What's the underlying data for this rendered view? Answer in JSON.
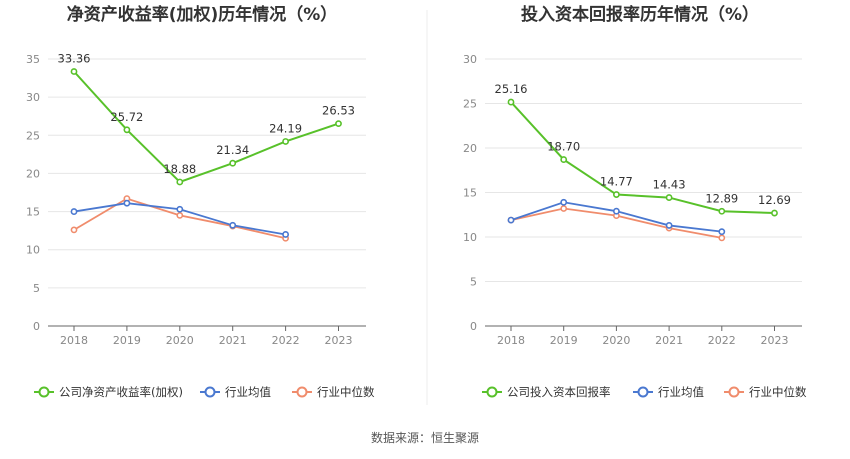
{
  "source_text": "数据来源：恒生聚源",
  "colors": {
    "company": "#58c12a",
    "avg": "#4a78d0",
    "median": "#f08c6c",
    "grid": "#e6e6e6",
    "axis": "#666666"
  },
  "chart_data": [
    {
      "type": "line",
      "title": "净资产收益率(加权)历年情况（%）",
      "categories": [
        "2018",
        "2019",
        "2020",
        "2021",
        "2022",
        "2023"
      ],
      "ylim": [
        0,
        35
      ],
      "yticks": [
        "0",
        "5",
        "10",
        "15",
        "20",
        "25",
        "30",
        "35"
      ],
      "grid": true,
      "legend": "bottom-left",
      "series": [
        {
          "name": "公司净资产收益率(加权)",
          "values": [
            33.36,
            25.72,
            18.88,
            21.34,
            24.19,
            26.53
          ],
          "labels": [
            "33.36",
            "25.72",
            "18.88",
            "21.34",
            "24.19",
            "26.53"
          ]
        },
        {
          "name": "行业均值",
          "values": [
            15.0,
            16.1,
            15.3,
            13.2,
            12.0,
            null
          ]
        },
        {
          "name": "行业中位数",
          "values": [
            12.6,
            16.7,
            14.5,
            13.1,
            11.5,
            null
          ]
        }
      ]
    },
    {
      "type": "line",
      "title": "投入资本回报率历年情况（%）",
      "categories": [
        "2018",
        "2019",
        "2020",
        "2021",
        "2022",
        "2023"
      ],
      "ylim": [
        0,
        30
      ],
      "yticks": [
        "0",
        "5",
        "10",
        "15",
        "20",
        "25",
        "30"
      ],
      "grid": true,
      "legend": "bottom-left",
      "series": [
        {
          "name": "公司投入资本回报率",
          "values": [
            25.16,
            18.7,
            14.77,
            14.43,
            12.89,
            12.69
          ],
          "labels": [
            "25.16",
            "18.70",
            "14.77",
            "14.43",
            "12.89",
            "12.69"
          ]
        },
        {
          "name": "行业均值",
          "values": [
            11.9,
            13.9,
            12.9,
            11.3,
            10.6,
            null
          ]
        },
        {
          "name": "行业中位数",
          "values": [
            11.9,
            13.2,
            12.4,
            11.0,
            9.9,
            null
          ]
        }
      ]
    }
  ]
}
